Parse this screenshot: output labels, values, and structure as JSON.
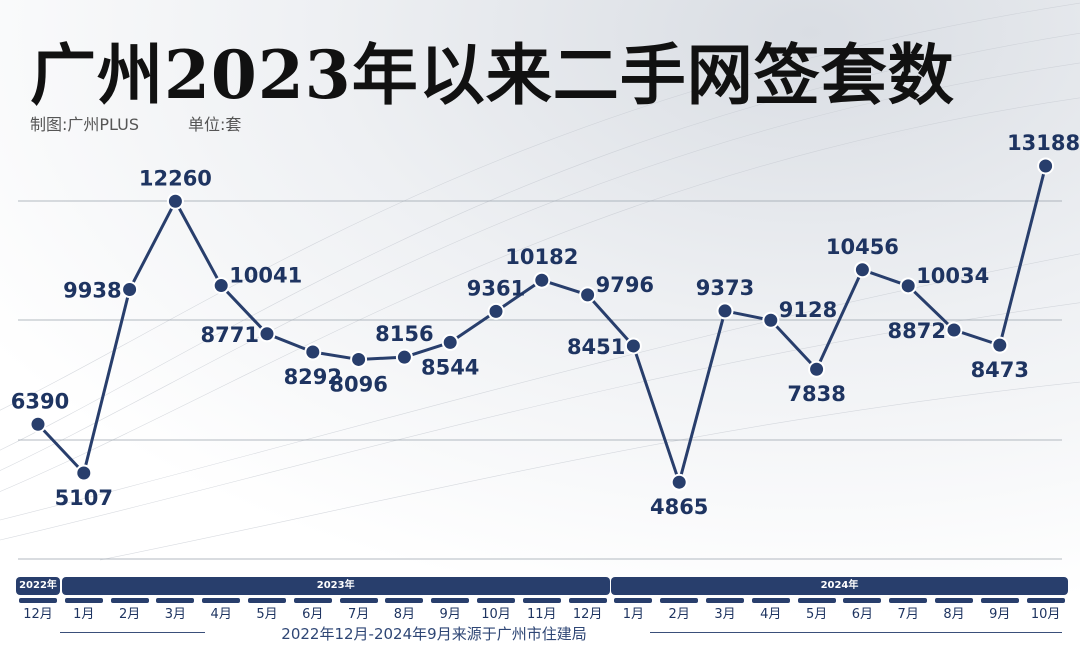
{
  "header": {
    "title": "广州2023年以来二手网签套数",
    "maker": "制图:广州PLUS",
    "unit": "单位:套"
  },
  "footer": {
    "source": "2022年12月-2024年9月来源于广州市住建局"
  },
  "colors": {
    "line": "#283e6c",
    "label": "#1e3461",
    "grid": "#9aa3ad"
  },
  "chart_data": {
    "type": "line",
    "title": "广州2023年以来二手网签套数",
    "year_groups": [
      {
        "label": "2022年",
        "months": [
          "12月"
        ]
      },
      {
        "label": "2023年",
        "months": [
          "1月",
          "2月",
          "3月",
          "4月",
          "5月",
          "6月",
          "7月",
          "8月",
          "9月",
          "10月",
          "11月",
          "12月"
        ]
      },
      {
        "label": "2024年",
        "months": [
          "1月",
          "2月",
          "3月",
          "4月",
          "5月",
          "6月",
          "7月",
          "8月",
          "9月",
          "10月"
        ]
      }
    ],
    "categories": [
      "2022年12月",
      "2023年1月",
      "2023年2月",
      "2023年3月",
      "2023年4月",
      "2023年5月",
      "2023年6月",
      "2023年7月",
      "2023年8月",
      "2023年9月",
      "2023年10月",
      "2023年11月",
      "2023年12月",
      "2024年1月",
      "2024年2月",
      "2024年3月",
      "2024年4月",
      "2024年5月",
      "2024年6月",
      "2024年7月",
      "2024年8月",
      "2024年9月",
      "2024年10月"
    ],
    "values": [
      6390,
      5107,
      9938,
      12260,
      10041,
      8771,
      8292,
      8096,
      8156,
      8544,
      9361,
      10182,
      9796,
      8451,
      4865,
      9373,
      9128,
      7838,
      10456,
      10034,
      8872,
      8473,
      13188
    ],
    "label_side": [
      "above",
      "below",
      "left",
      "above",
      "right",
      "left",
      "below",
      "below",
      "above",
      "below",
      "above",
      "above",
      "right",
      "left",
      "below",
      "above",
      "right",
      "below",
      "above",
      "right",
      "left",
      "below",
      "above"
    ],
    "grid": true,
    "legend": "none"
  }
}
